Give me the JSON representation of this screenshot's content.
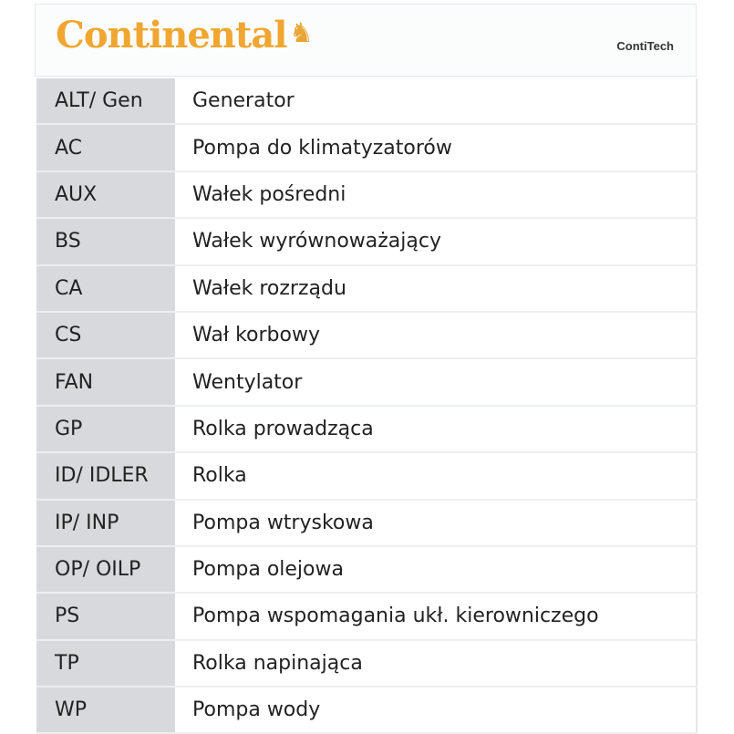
{
  "header": {
    "logo_text": "Continental",
    "logo_icon": "horse-icon",
    "subbrand": "ContiTech",
    "brand_color": "#f0a630"
  },
  "rows": [
    {
      "abbr": "ALT/ Gen",
      "desc": "Generator"
    },
    {
      "abbr": "AC",
      "desc": "Pompa do klimatyzatorów"
    },
    {
      "abbr": "AUX",
      "desc": "Wałek  pośredni"
    },
    {
      "abbr": "BS",
      "desc": "Wałek  wyrównoważający"
    },
    {
      "abbr": "CA",
      "desc": "Wałek rozrządu"
    },
    {
      "abbr": "CS",
      "desc": "Wał korbowy"
    },
    {
      "abbr": "FAN",
      "desc": "Wentylator"
    },
    {
      "abbr": "GP",
      "desc": "Rolka prowadząca"
    },
    {
      "abbr": "ID/ IDLER",
      "desc": "Rolka"
    },
    {
      "abbr": "IP/ INP",
      "desc": "Pompa wtryskowa"
    },
    {
      "abbr": "OP/ OILP",
      "desc": "Pompa olejowa"
    },
    {
      "abbr": "PS",
      "desc": "Pompa wspomagania ukł. kierowniczego"
    },
    {
      "abbr": "TP",
      "desc": "Rolka napinająca"
    },
    {
      "abbr": "WP",
      "desc": "Pompa wody"
    }
  ]
}
